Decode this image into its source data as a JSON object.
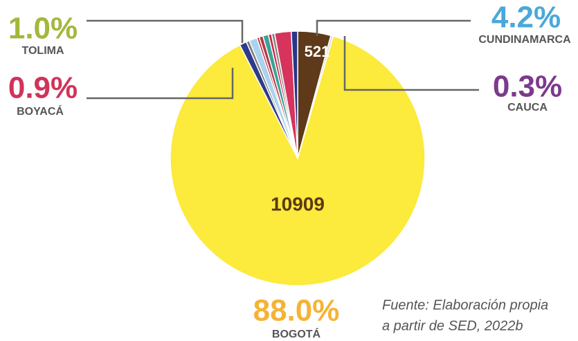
{
  "chart_data": {
    "type": "pie",
    "categories": [
      "CUNDINAMARCA",
      "CAUCA",
      "BOGOTÁ",
      "BOYACÁ",
      null,
      "TOLIMA",
      null,
      null,
      null,
      null,
      null,
      null,
      null
    ],
    "values": [
      4.2,
      0.3,
      88.0,
      0.9,
      0.4,
      1.0,
      0.3,
      0.5,
      0.7,
      0.4,
      0.4,
      2.1,
      0.8
    ],
    "value_labels": [
      "4.2%",
      "0.3%",
      "88.0%",
      "0.9%",
      null,
      "1.0%",
      null,
      null,
      null,
      null,
      null,
      null,
      null
    ],
    "counts": [
      521,
      null,
      10909,
      null,
      null,
      null,
      null,
      null,
      null,
      null,
      null,
      null,
      null
    ],
    "colors": [
      "#5e3a1a",
      "#d9d9d9",
      "#fcea3c",
      "#2e3b8c",
      "#7a7a7a",
      "#a9d3ee",
      "#c0283b",
      "#b23a48",
      "#3aa39a",
      "#c9283f",
      "#8a8a8a",
      "#d6335d",
      "#2b3588"
    ],
    "label_colors": [
      "#4aa8d8",
      "#7b3a8c",
      "#f5b335",
      "#d0335a",
      null,
      "#a3b83a",
      null,
      null,
      null,
      null,
      null,
      null,
      null
    ],
    "source": [
      "Fuente: Elaboración propia",
      "a partir de SED, 2022b"
    ]
  }
}
